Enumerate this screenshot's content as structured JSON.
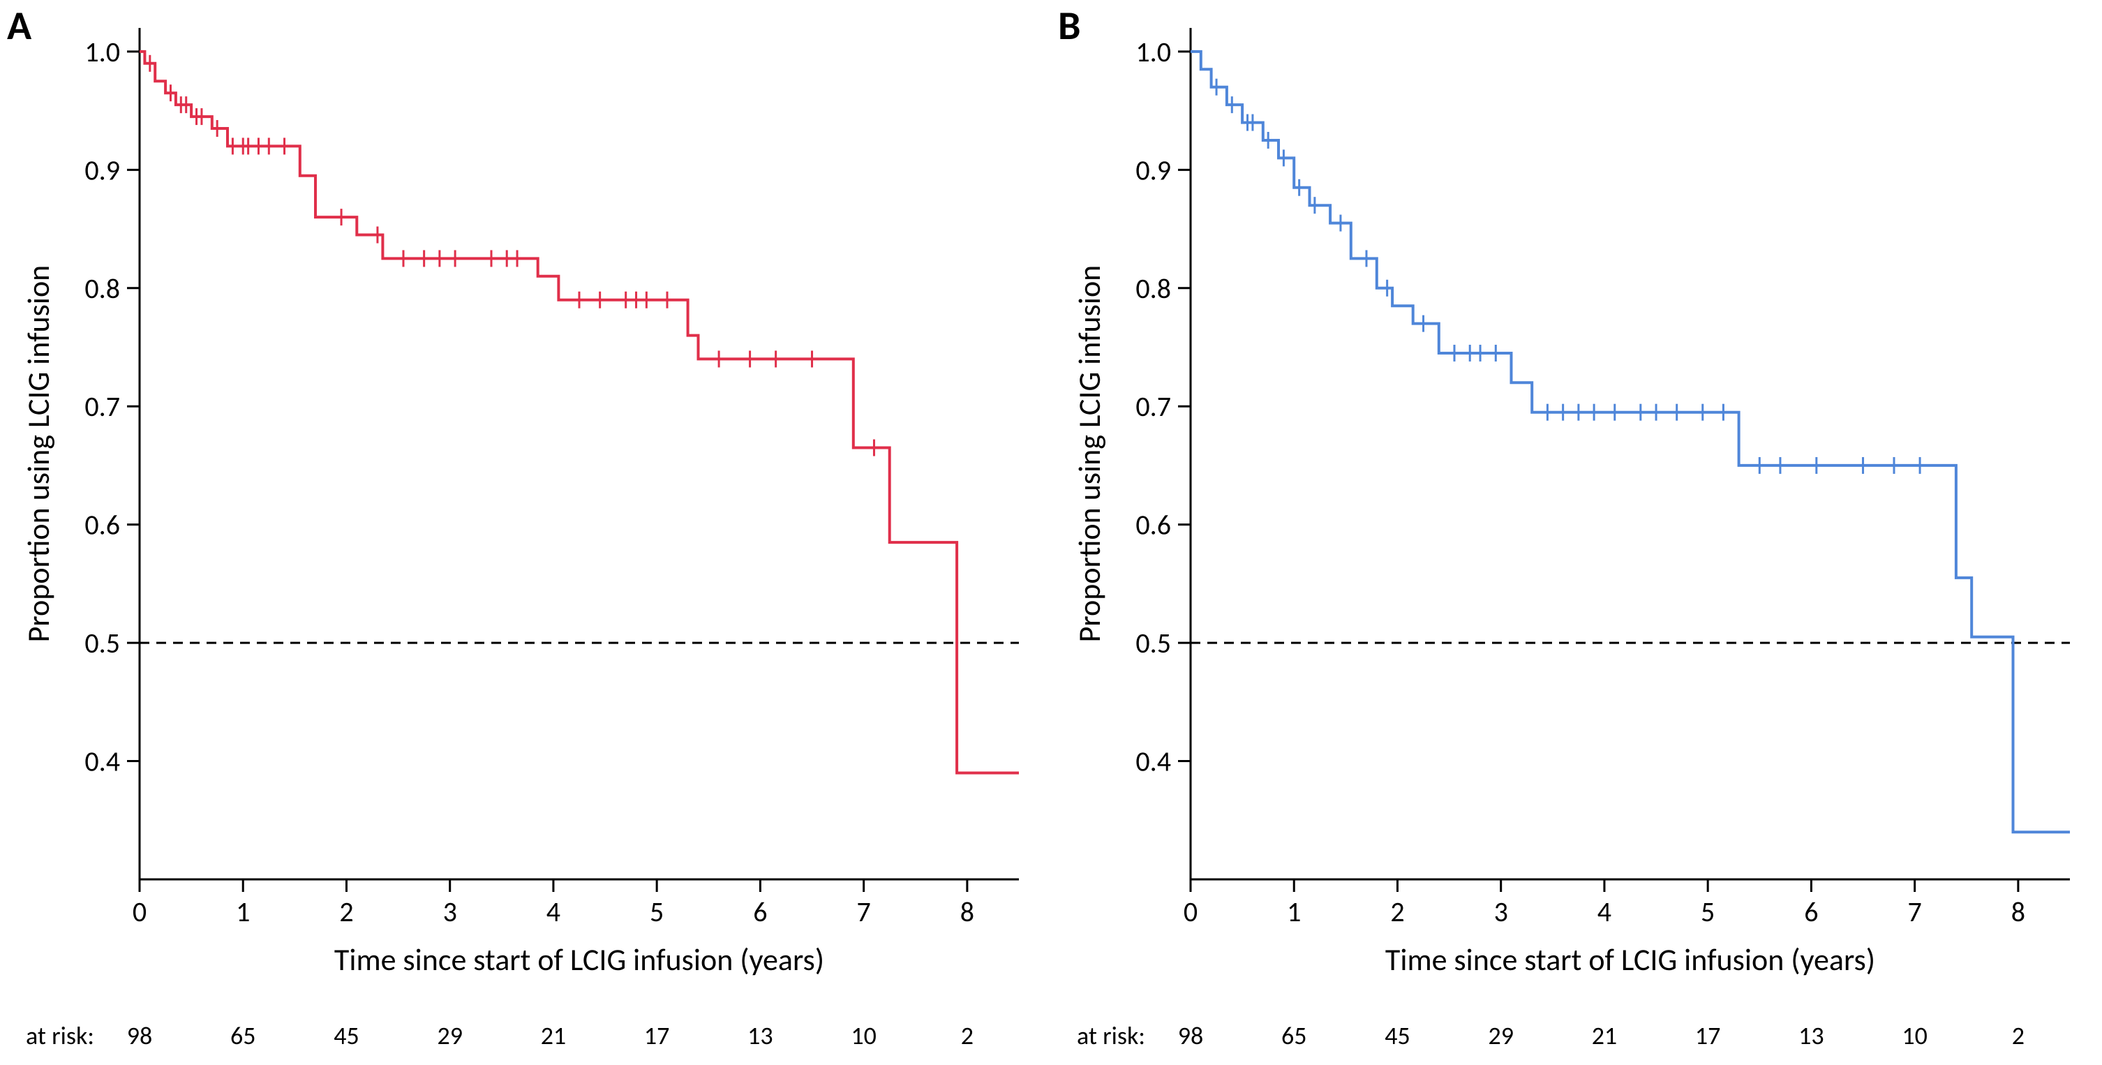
{
  "figure": {
    "background_color": "#ffffff",
    "axis_color": "#000000",
    "tick_fontsize": 40,
    "axis_title_fontsize": 44,
    "panel_label_fontsize": 58,
    "atrisk_label_fontsize": 36,
    "atrisk_value_fontsize": 36,
    "font_family": "Segoe UI, Calibri, Helvetica Neue, Arial, sans-serif",
    "panels": [
      {
        "id": "A",
        "type": "kaplan_meier",
        "panel_label": "A",
        "curve_color": "#e02f4a",
        "xlim": [
          0,
          8.5
        ],
        "ylim": [
          0.3,
          1.02
        ],
        "x_ticks": [
          0,
          1,
          2,
          3,
          4,
          5,
          6,
          7,
          8
        ],
        "y_ticks": [
          0.4,
          0.5,
          0.6,
          0.7,
          0.8,
          0.9,
          1.0
        ],
        "x_tick_labels": [
          "0",
          "1",
          "2",
          "3",
          "4",
          "5",
          "6",
          "7",
          "8"
        ],
        "y_tick_labels": [
          "0.4",
          "0.5",
          "0.6",
          "0.7",
          "0.8",
          "0.9",
          "1.0"
        ],
        "x_title": "Time since start of LCIG infusion (years)",
        "y_title": "Proportion using LCIG infusion",
        "reference_y": 0.5,
        "at_risk_label": "at risk:",
        "at_risk_x": [
          0,
          1,
          2,
          3,
          4,
          5,
          6,
          7,
          8
        ],
        "at_risk_values": [
          "98",
          "65",
          "45",
          "29",
          "21",
          "17",
          "13",
          "10",
          "2"
        ],
        "steps": [
          [
            0.0,
            1.0
          ],
          [
            0.05,
            1.0
          ],
          [
            0.05,
            0.99
          ],
          [
            0.15,
            0.99
          ],
          [
            0.15,
            0.975
          ],
          [
            0.25,
            0.975
          ],
          [
            0.25,
            0.965
          ],
          [
            0.35,
            0.965
          ],
          [
            0.35,
            0.955
          ],
          [
            0.5,
            0.955
          ],
          [
            0.5,
            0.945
          ],
          [
            0.7,
            0.945
          ],
          [
            0.7,
            0.935
          ],
          [
            0.85,
            0.935
          ],
          [
            0.85,
            0.92
          ],
          [
            1.55,
            0.92
          ],
          [
            1.55,
            0.895
          ],
          [
            1.7,
            0.895
          ],
          [
            1.7,
            0.86
          ],
          [
            2.1,
            0.86
          ],
          [
            2.1,
            0.845
          ],
          [
            2.35,
            0.845
          ],
          [
            2.35,
            0.825
          ],
          [
            3.85,
            0.825
          ],
          [
            3.85,
            0.81
          ],
          [
            4.05,
            0.81
          ],
          [
            4.05,
            0.79
          ],
          [
            5.3,
            0.79
          ],
          [
            5.3,
            0.76
          ],
          [
            5.4,
            0.76
          ],
          [
            5.4,
            0.74
          ],
          [
            6.9,
            0.74
          ],
          [
            6.9,
            0.665
          ],
          [
            7.25,
            0.665
          ],
          [
            7.25,
            0.585
          ],
          [
            7.9,
            0.585
          ],
          [
            7.9,
            0.39
          ],
          [
            8.5,
            0.39
          ]
        ],
        "censor_marks": [
          [
            0.1,
            0.99
          ],
          [
            0.3,
            0.965
          ],
          [
            0.4,
            0.955
          ],
          [
            0.45,
            0.955
          ],
          [
            0.55,
            0.945
          ],
          [
            0.6,
            0.945
          ],
          [
            0.75,
            0.935
          ],
          [
            0.9,
            0.92
          ],
          [
            1.0,
            0.92
          ],
          [
            1.05,
            0.92
          ],
          [
            1.15,
            0.92
          ],
          [
            1.25,
            0.92
          ],
          [
            1.4,
            0.92
          ],
          [
            1.95,
            0.86
          ],
          [
            2.3,
            0.845
          ],
          [
            2.55,
            0.825
          ],
          [
            2.75,
            0.825
          ],
          [
            2.9,
            0.825
          ],
          [
            3.05,
            0.825
          ],
          [
            3.4,
            0.825
          ],
          [
            3.55,
            0.825
          ],
          [
            3.65,
            0.825
          ],
          [
            4.25,
            0.79
          ],
          [
            4.45,
            0.79
          ],
          [
            4.7,
            0.79
          ],
          [
            4.8,
            0.79
          ],
          [
            4.9,
            0.79
          ],
          [
            5.1,
            0.79
          ],
          [
            5.6,
            0.74
          ],
          [
            5.9,
            0.74
          ],
          [
            6.15,
            0.74
          ],
          [
            6.5,
            0.74
          ],
          [
            7.1,
            0.665
          ]
        ]
      },
      {
        "id": "B",
        "type": "kaplan_meier",
        "panel_label": "B",
        "curve_color": "#4f86d9",
        "xlim": [
          0,
          8.5
        ],
        "ylim": [
          0.3,
          1.02
        ],
        "x_ticks": [
          0,
          1,
          2,
          3,
          4,
          5,
          6,
          7,
          8
        ],
        "y_ticks": [
          0.4,
          0.5,
          0.6,
          0.7,
          0.8,
          0.9,
          1.0
        ],
        "x_tick_labels": [
          "0",
          "1",
          "2",
          "3",
          "4",
          "5",
          "6",
          "7",
          "8"
        ],
        "y_tick_labels": [
          "0.4",
          "0.5",
          "0.6",
          "0.7",
          "0.8",
          "0.9",
          "1.0"
        ],
        "x_title": "Time since start of LCIG infusion (years)",
        "y_title": "Proportion using LCIG infusion",
        "reference_y": 0.5,
        "at_risk_label": "at risk:",
        "at_risk_x": [
          0,
          1,
          2,
          3,
          4,
          5,
          6,
          7,
          8
        ],
        "at_risk_values": [
          "98",
          "65",
          "45",
          "29",
          "21",
          "17",
          "13",
          "10",
          "2"
        ],
        "steps": [
          [
            0.0,
            1.0
          ],
          [
            0.1,
            1.0
          ],
          [
            0.1,
            0.985
          ],
          [
            0.2,
            0.985
          ],
          [
            0.2,
            0.97
          ],
          [
            0.35,
            0.97
          ],
          [
            0.35,
            0.955
          ],
          [
            0.5,
            0.955
          ],
          [
            0.5,
            0.94
          ],
          [
            0.7,
            0.94
          ],
          [
            0.7,
            0.925
          ],
          [
            0.85,
            0.925
          ],
          [
            0.85,
            0.91
          ],
          [
            1.0,
            0.91
          ],
          [
            1.0,
            0.885
          ],
          [
            1.15,
            0.885
          ],
          [
            1.15,
            0.87
          ],
          [
            1.35,
            0.87
          ],
          [
            1.35,
            0.855
          ],
          [
            1.55,
            0.855
          ],
          [
            1.55,
            0.825
          ],
          [
            1.8,
            0.825
          ],
          [
            1.8,
            0.8
          ],
          [
            1.95,
            0.8
          ],
          [
            1.95,
            0.785
          ],
          [
            2.15,
            0.785
          ],
          [
            2.15,
            0.77
          ],
          [
            2.4,
            0.77
          ],
          [
            2.4,
            0.745
          ],
          [
            3.1,
            0.745
          ],
          [
            3.1,
            0.72
          ],
          [
            3.3,
            0.72
          ],
          [
            3.3,
            0.695
          ],
          [
            5.3,
            0.695
          ],
          [
            5.3,
            0.65
          ],
          [
            7.4,
            0.65
          ],
          [
            7.4,
            0.555
          ],
          [
            7.55,
            0.555
          ],
          [
            7.55,
            0.505
          ],
          [
            7.95,
            0.505
          ],
          [
            7.95,
            0.34
          ],
          [
            8.5,
            0.34
          ]
        ],
        "censor_marks": [
          [
            0.25,
            0.97
          ],
          [
            0.4,
            0.955
          ],
          [
            0.55,
            0.94
          ],
          [
            0.6,
            0.94
          ],
          [
            0.75,
            0.925
          ],
          [
            0.9,
            0.91
          ],
          [
            1.05,
            0.885
          ],
          [
            1.2,
            0.87
          ],
          [
            1.45,
            0.855
          ],
          [
            1.7,
            0.825
          ],
          [
            1.9,
            0.8
          ],
          [
            2.25,
            0.77
          ],
          [
            2.55,
            0.745
          ],
          [
            2.7,
            0.745
          ],
          [
            2.8,
            0.745
          ],
          [
            2.95,
            0.745
          ],
          [
            3.45,
            0.695
          ],
          [
            3.6,
            0.695
          ],
          [
            3.75,
            0.695
          ],
          [
            3.9,
            0.695
          ],
          [
            4.1,
            0.695
          ],
          [
            4.35,
            0.695
          ],
          [
            4.5,
            0.695
          ],
          [
            4.7,
            0.695
          ],
          [
            4.95,
            0.695
          ],
          [
            5.15,
            0.695
          ],
          [
            5.5,
            0.65
          ],
          [
            5.7,
            0.65
          ],
          [
            6.05,
            0.65
          ],
          [
            6.5,
            0.65
          ],
          [
            6.8,
            0.65
          ],
          [
            7.05,
            0.65
          ]
        ]
      }
    ]
  }
}
